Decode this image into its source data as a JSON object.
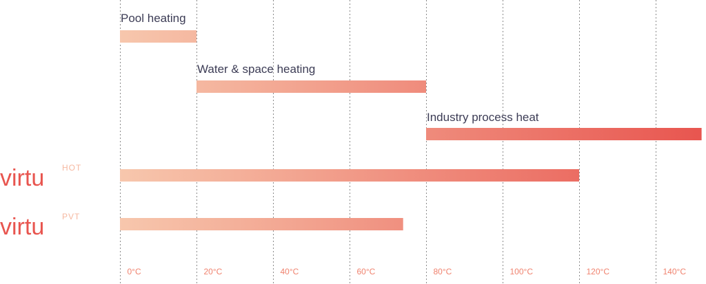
{
  "chart_data": {
    "type": "bar",
    "orientation": "horizontal",
    "x_unit": "°C",
    "xlim": [
      -10,
      142
    ],
    "x_ticks": [
      0,
      20,
      40,
      60,
      80,
      100,
      120,
      140
    ],
    "x_tick_labels": [
      "0°C",
      "20°C",
      "40°C",
      "60°C",
      "80°C",
      "100°C",
      "120°C",
      "140°C"
    ],
    "grid": true,
    "bars": [
      {
        "label": "Pool heating",
        "start": 0,
        "end": 20
      },
      {
        "label": "Water & space heating",
        "start": 20,
        "end": 80
      },
      {
        "label": "Industry process heat",
        "start": 80,
        "end": 152
      },
      {
        "product_main": "virtu",
        "product_sup": "HOT",
        "start": 0,
        "end": 120
      },
      {
        "product_main": "virtu",
        "product_sup": "PVT",
        "start": 0,
        "end": 74
      }
    ]
  },
  "colors": {
    "gradient_start": "#f7c7ad",
    "gradient_end": "#e8554f",
    "tick_text": "#f0826e",
    "label_text": "#3c3c55",
    "logo_main": "#e8554f",
    "logo_sup": "#f6b8a0"
  }
}
